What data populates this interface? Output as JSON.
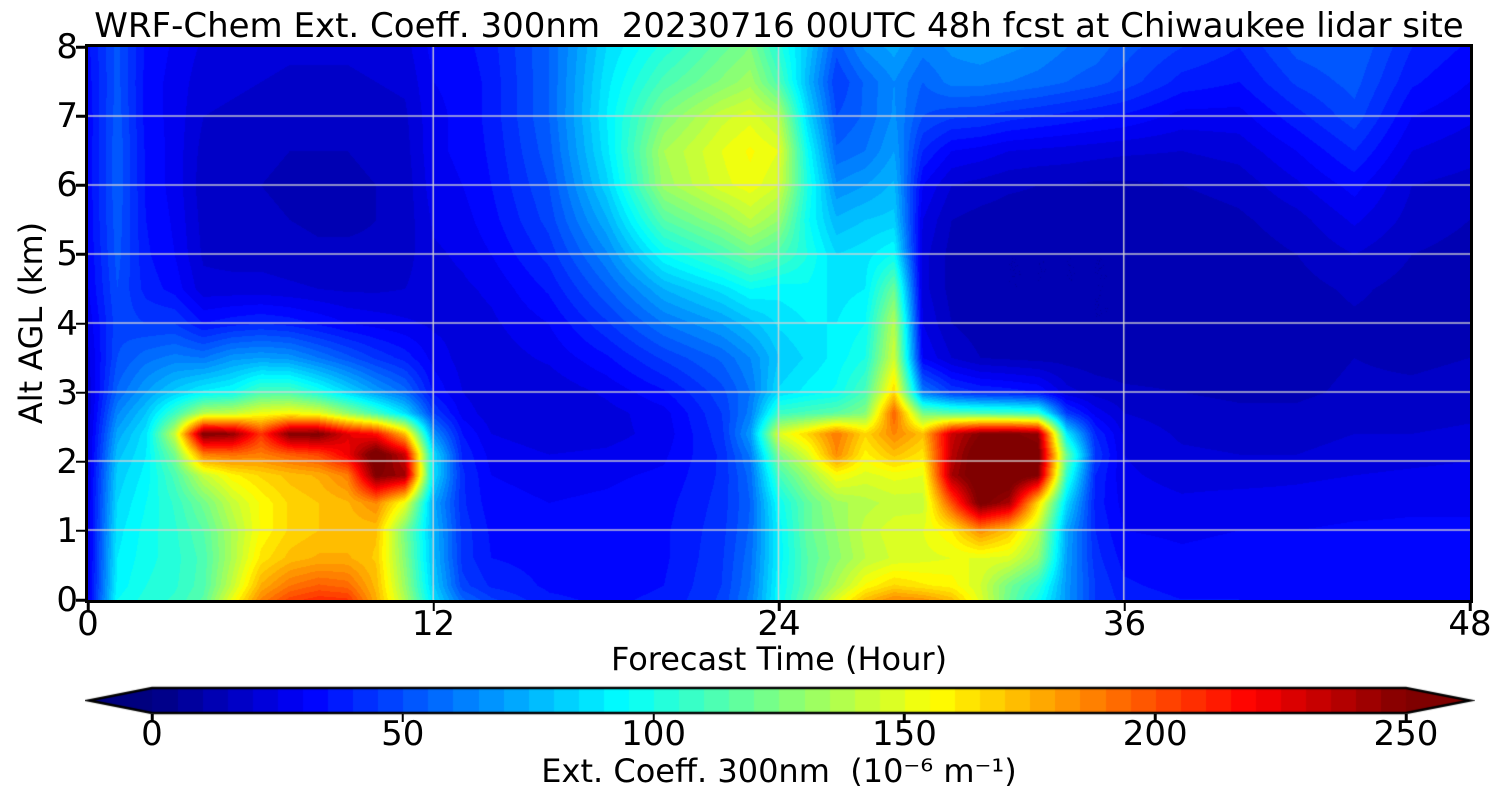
{
  "title": "WRF-Chem Ext. Coeff. 300nm  20230716 00UTC 48h fcst at Chiwaukee lidar site",
  "x_axis": {
    "label": "Forecast Time (Hour)",
    "ticks": [
      0,
      12,
      24,
      36,
      48
    ],
    "range": [
      0,
      48
    ],
    "gridlines": [
      12,
      24,
      36
    ]
  },
  "y_axis": {
    "label": "Alt AGL (km)",
    "ticks": [
      0,
      1,
      2,
      3,
      4,
      5,
      6,
      7,
      8
    ],
    "range": [
      0,
      8
    ],
    "gridlines": [
      1,
      2,
      3,
      4,
      5,
      6,
      7
    ]
  },
  "colorbar": {
    "label": "Ext. Coeff. 300nm  (10⁻⁶ m⁻¹)",
    "ticks": [
      0,
      50,
      100,
      150,
      200,
      250
    ],
    "range": [
      0,
      250
    ],
    "extend": "both",
    "under_color": "#00007f",
    "over_color": "#7f0000"
  },
  "style": {
    "grid_color": "rgba(212,212,212,0.9)",
    "axis_color": "#000000"
  },
  "chart_data": {
    "type": "heatmap",
    "colormap": "jet",
    "value_range": [
      0,
      250
    ],
    "level_step": 5,
    "x_label": "Forecast Time (Hour)",
    "y_label": "Alt AGL (km)",
    "units": "10^-6 m^-1",
    "x_hours": [
      0,
      1,
      2,
      3,
      4,
      5,
      6,
      7,
      8,
      9,
      10,
      11,
      12,
      13,
      14,
      16,
      18,
      20,
      22,
      23,
      24,
      25,
      26,
      27,
      28,
      29,
      30,
      31,
      32,
      33,
      34,
      35,
      36,
      38,
      40,
      42,
      44,
      46,
      48
    ],
    "y_alt_km": [
      0,
      0.2,
      0.6,
      1.0,
      1.4,
      1.8,
      2.1,
      2.4,
      2.7,
      3.0,
      3.5,
      4.0,
      4.5,
      5.0,
      5.5,
      6.0,
      6.5,
      7.0,
      7.5,
      8.0
    ],
    "values_by_hour_column": [
      [
        28,
        27,
        26,
        26,
        26,
        25,
        24,
        23,
        22,
        22,
        24,
        27,
        30,
        31,
        32,
        32,
        32,
        32,
        33,
        34
      ],
      [
        95,
        92,
        90,
        88,
        85,
        82,
        78,
        72,
        64,
        56,
        50,
        48,
        50,
        52,
        53,
        54,
        54,
        53,
        52,
        52
      ],
      [
        102,
        100,
        98,
        97,
        95,
        92,
        90,
        88,
        80,
        70,
        58,
        45,
        38,
        36,
        35,
        34,
        34,
        33,
        33,
        34
      ],
      [
        106,
        104,
        103,
        104,
        106,
        112,
        122,
        142,
        108,
        82,
        62,
        45,
        33,
        30,
        29,
        28,
        28,
        28,
        28,
        29
      ],
      [
        116,
        113,
        112,
        115,
        122,
        142,
        188,
        252,
        138,
        92,
        60,
        35,
        22,
        19,
        18,
        17,
        18,
        20,
        22,
        24
      ],
      [
        152,
        142,
        136,
        136,
        142,
        158,
        192,
        246,
        142,
        96,
        68,
        38,
        22,
        18,
        17,
        16,
        17,
        19,
        21,
        23
      ],
      [
        186,
        176,
        162,
        156,
        156,
        166,
        188,
        206,
        152,
        112,
        70,
        40,
        22,
        18,
        16,
        15,
        16,
        18,
        20,
        22
      ],
      [
        202,
        190,
        172,
        166,
        166,
        172,
        196,
        250,
        156,
        112,
        68,
        38,
        21,
        17,
        15,
        14,
        15,
        17,
        19,
        21
      ],
      [
        208,
        196,
        176,
        170,
        170,
        176,
        202,
        252,
        150,
        100,
        60,
        34,
        20,
        16,
        14,
        14,
        15,
        17,
        19,
        21
      ],
      [
        206,
        193,
        176,
        171,
        174,
        188,
        222,
        226,
        130,
        85,
        52,
        30,
        19,
        16,
        14,
        14,
        15,
        17,
        19,
        21
      ],
      [
        176,
        173,
        169,
        171,
        186,
        252,
        260,
        216,
        110,
        70,
        44,
        28,
        19,
        16,
        15,
        15,
        16,
        18,
        20,
        22
      ],
      [
        136,
        131,
        126,
        123,
        152,
        242,
        232,
        172,
        86,
        58,
        38,
        26,
        20,
        18,
        17,
        17,
        18,
        19,
        21,
        23
      ],
      [
        86,
        81,
        77,
        76,
        72,
        86,
        86,
        66,
        45,
        34,
        28,
        24,
        23,
        24,
        26,
        28,
        29,
        29,
        30,
        32
      ],
      [
        56,
        47,
        43,
        43,
        41,
        41,
        39,
        35,
        28,
        25,
        23,
        23,
        24,
        26,
        28,
        30,
        31,
        31,
        31,
        33
      ],
      [
        46,
        39,
        35,
        34,
        32,
        30,
        28,
        25,
        22,
        21,
        22,
        24,
        26,
        30,
        33,
        35,
        36,
        37,
        37,
        38
      ],
      [
        36,
        34,
        33,
        32,
        30,
        28,
        25,
        22,
        21,
        21,
        26,
        30,
        36,
        42,
        47,
        50,
        53,
        55,
        55,
        55
      ],
      [
        34,
        33,
        32,
        32,
        31,
        29,
        26,
        23,
        23,
        26,
        34,
        44,
        54,
        64,
        74,
        83,
        88,
        90,
        88,
        85
      ],
      [
        36,
        35,
        34,
        34,
        33,
        31,
        29,
        27,
        28,
        34,
        46,
        60,
        75,
        95,
        115,
        132,
        135,
        125,
        112,
        102
      ],
      [
        46,
        45,
        44,
        43,
        42,
        41,
        41,
        43,
        45,
        48,
        56,
        70,
        87,
        110,
        130,
        148,
        150,
        143,
        126,
        118
      ],
      [
        62,
        60,
        58,
        56,
        55,
        57,
        61,
        69,
        62,
        60,
        65,
        78,
        95,
        120,
        140,
        153,
        156,
        148,
        133,
        125
      ],
      [
        95,
        94,
        92,
        92,
        96,
        110,
        124,
        148,
        108,
        86,
        80,
        86,
        92,
        112,
        130,
        145,
        150,
        138,
        112,
        102
      ],
      [
        120,
        116,
        115,
        118,
        118,
        132,
        148,
        166,
        112,
        92,
        86,
        90,
        94,
        100,
        96,
        100,
        95,
        85,
        76,
        80
      ],
      [
        148,
        136,
        128,
        130,
        133,
        155,
        185,
        190,
        116,
        96,
        92,
        90,
        88,
        85,
        76,
        66,
        56,
        50,
        45,
        52
      ],
      [
        172,
        156,
        140,
        142,
        138,
        148,
        158,
        166,
        126,
        112,
        100,
        95,
        90,
        88,
        80,
        70,
        60,
        56,
        56,
        66
      ],
      [
        185,
        166,
        146,
        148,
        142,
        152,
        172,
        186,
        196,
        166,
        145,
        138,
        120,
        95,
        82,
        76,
        70,
        66,
        65,
        72
      ],
      [
        182,
        161,
        148,
        150,
        142,
        150,
        162,
        172,
        122,
        62,
        30,
        25,
        22,
        22,
        25,
        30,
        40,
        50,
        55,
        62
      ],
      [
        172,
        158,
        150,
        160,
        200,
        240,
        235,
        232,
        115,
        45,
        20,
        15,
        13,
        13,
        15,
        20,
        30,
        46,
        62,
        66
      ],
      [
        148,
        145,
        150,
        185,
        255,
        262,
        262,
        250,
        112,
        40,
        15,
        12,
        11,
        11,
        13,
        18,
        28,
        45,
        62,
        68
      ],
      [
        120,
        122,
        148,
        170,
        240,
        262,
        262,
        252,
        110,
        38,
        14,
        11,
        10,
        10,
        12,
        16,
        25,
        42,
        60,
        66
      ],
      [
        98,
        105,
        130,
        140,
        165,
        250,
        255,
        246,
        106,
        35,
        13,
        11,
        10,
        10,
        12,
        15,
        24,
        40,
        58,
        64
      ],
      [
        68,
        68,
        70,
        72,
        85,
        105,
        120,
        90,
        45,
        22,
        13,
        11,
        10,
        10,
        12,
        15,
        23,
        38,
        55,
        60
      ],
      [
        45,
        45,
        42,
        40,
        38,
        40,
        45,
        40,
        28,
        18,
        12,
        10,
        10,
        10,
        11,
        14,
        22,
        36,
        52,
        58
      ],
      [
        38,
        36,
        33,
        30,
        28,
        26,
        25,
        24,
        20,
        16,
        12,
        10,
        10,
        10,
        11,
        14,
        21,
        34,
        48,
        52
      ],
      [
        35,
        33,
        31,
        29,
        26,
        23,
        21,
        19,
        17,
        15,
        12,
        11,
        10,
        11,
        12,
        15,
        20,
        28,
        38,
        45
      ],
      [
        35,
        34,
        32,
        30,
        27,
        23,
        20,
        18,
        16,
        14,
        12,
        11,
        11,
        12,
        14,
        17,
        22,
        28,
        35,
        40
      ],
      [
        34,
        33,
        32,
        30,
        27,
        24,
        20,
        18,
        16,
        14,
        13,
        12,
        13,
        15,
        18,
        24,
        30,
        38,
        46,
        52
      ],
      [
        33,
        33,
        32,
        31,
        28,
        25,
        22,
        20,
        18,
        16,
        15,
        14,
        16,
        20,
        26,
        32,
        40,
        48,
        52,
        55
      ],
      [
        32,
        32,
        32,
        31,
        29,
        26,
        23,
        20,
        18,
        16,
        14,
        13,
        13,
        15,
        18,
        20,
        25,
        30,
        36,
        40
      ],
      [
        33,
        33,
        32,
        31,
        29,
        27,
        24,
        21,
        19,
        17,
        15,
        13,
        12,
        13,
        15,
        18,
        22,
        26,
        30,
        34
      ]
    ]
  }
}
